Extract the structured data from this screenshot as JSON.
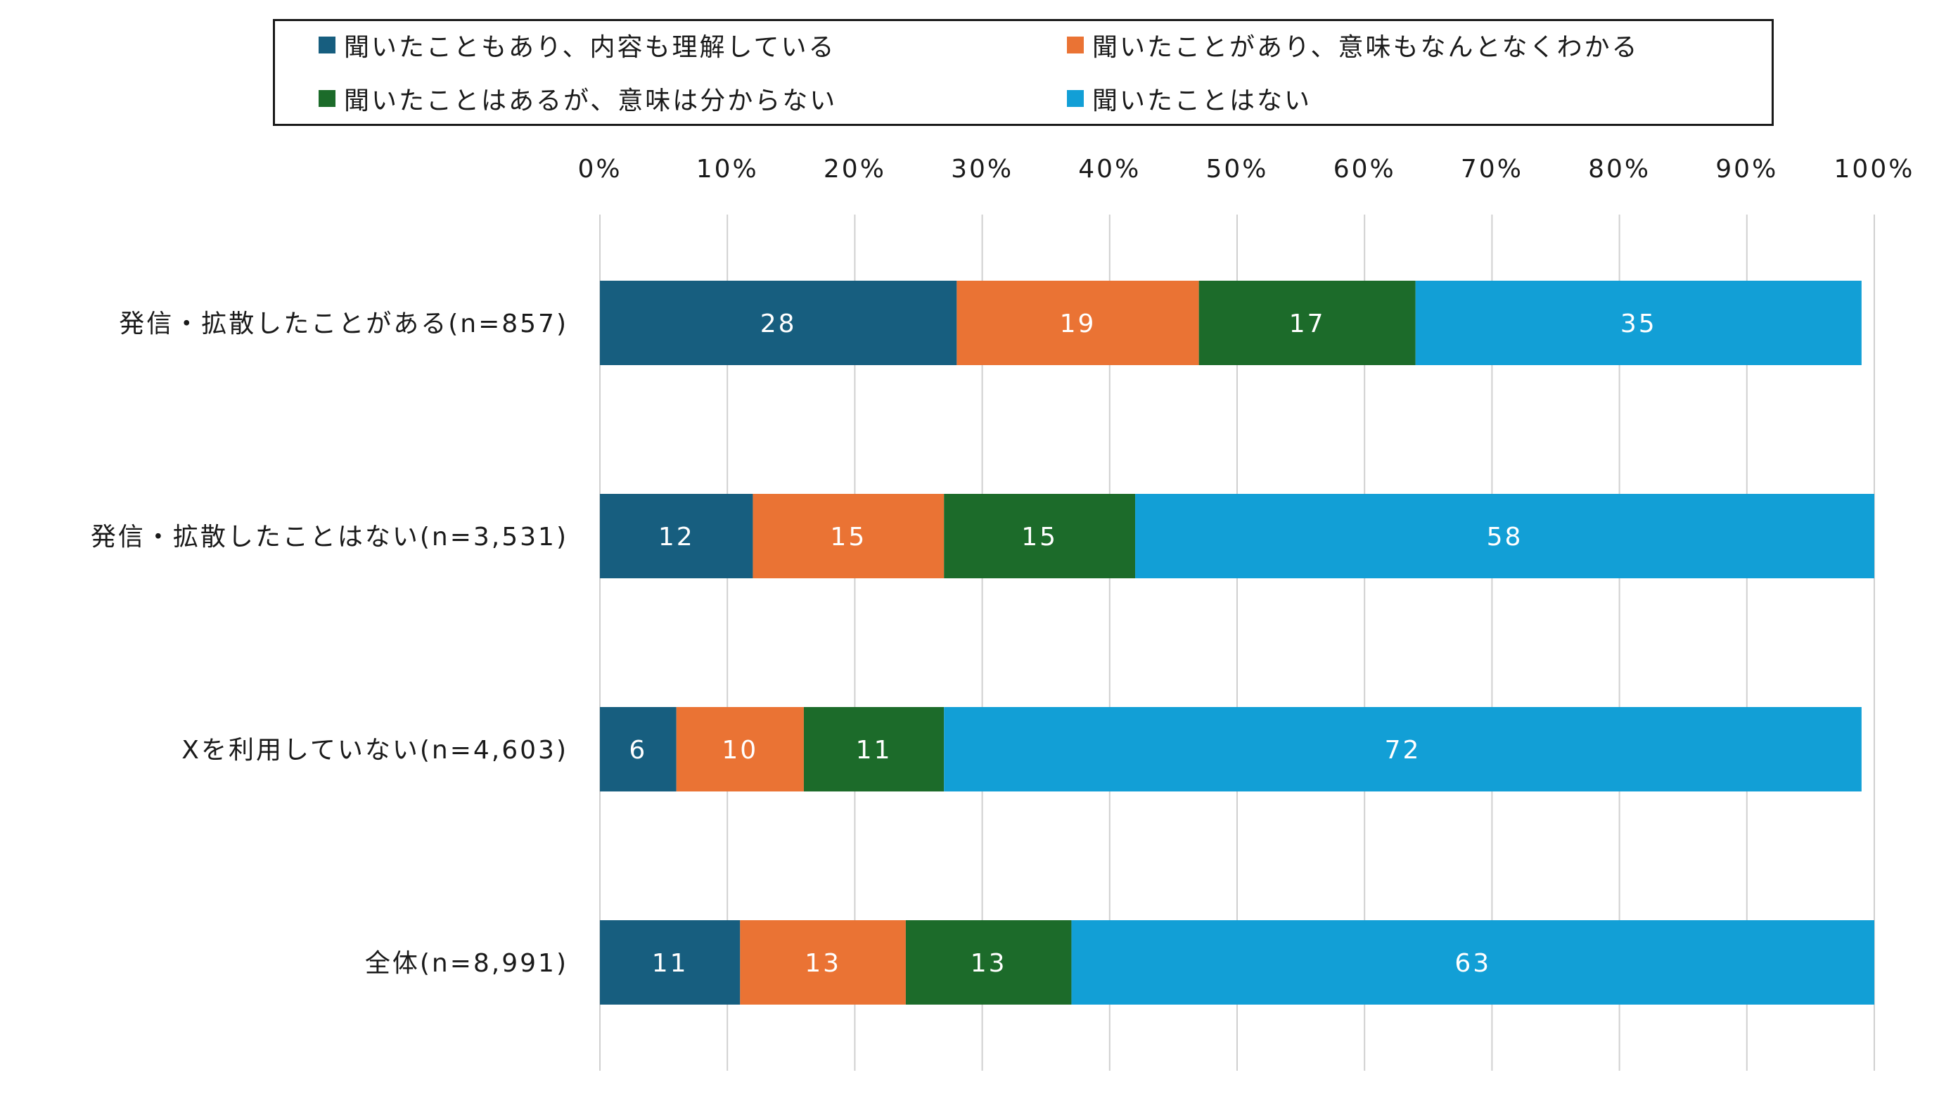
{
  "chart_data": {
    "type": "bar",
    "orientation": "horizontal",
    "stacked": true,
    "legend": "top",
    "grid": true,
    "xlim": [
      0,
      100
    ],
    "x_ticks": [
      "0%",
      "10%",
      "20%",
      "30%",
      "40%",
      "50%",
      "60%",
      "70%",
      "80%",
      "90%",
      "100%"
    ],
    "categories": [
      "発信・拡散したことがある(n=857)",
      "発信・拡散したことはない(n=3,531)",
      "Xを利用していない(n=4,603)",
      "全体(n=8,991)"
    ],
    "series": [
      {
        "name": "聞いたこともあり、内容も理解している",
        "color": "#175e7f",
        "values": [
          28,
          12,
          6,
          11
        ]
      },
      {
        "name": "聞いたことがあり、意味もなんとなくわかる",
        "color": "#ea7334",
        "values": [
          19,
          15,
          10,
          13
        ]
      },
      {
        "name": "聞いたことはあるが、意味は分からない",
        "color": "#1c6b2a",
        "values": [
          17,
          15,
          11,
          13
        ]
      },
      {
        "name": "聞いたことはない",
        "color": "#129fd6",
        "values": [
          35,
          58,
          72,
          63
        ]
      }
    ]
  }
}
